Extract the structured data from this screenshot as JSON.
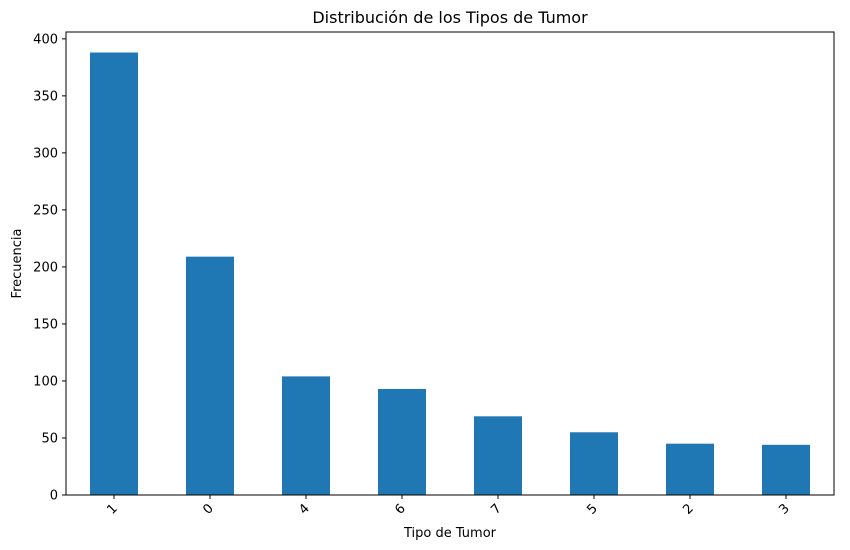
{
  "chart_data": {
    "type": "bar",
    "title": "Distribución de los Tipos de Tumor",
    "xlabel": "Tipo de Tumor",
    "ylabel": "Frecuencia",
    "categories": [
      "1",
      "0",
      "4",
      "6",
      "7",
      "5",
      "2",
      "3"
    ],
    "values": [
      388,
      209,
      104,
      93,
      69,
      55,
      45,
      44
    ],
    "ylim": [
      0,
      406
    ],
    "yticks": [
      0,
      50,
      100,
      150,
      200,
      250,
      300,
      350,
      400
    ],
    "xtick_rotation_deg": 45,
    "grid": false,
    "legend": "none",
    "bar_color": "#1f77b4"
  }
}
